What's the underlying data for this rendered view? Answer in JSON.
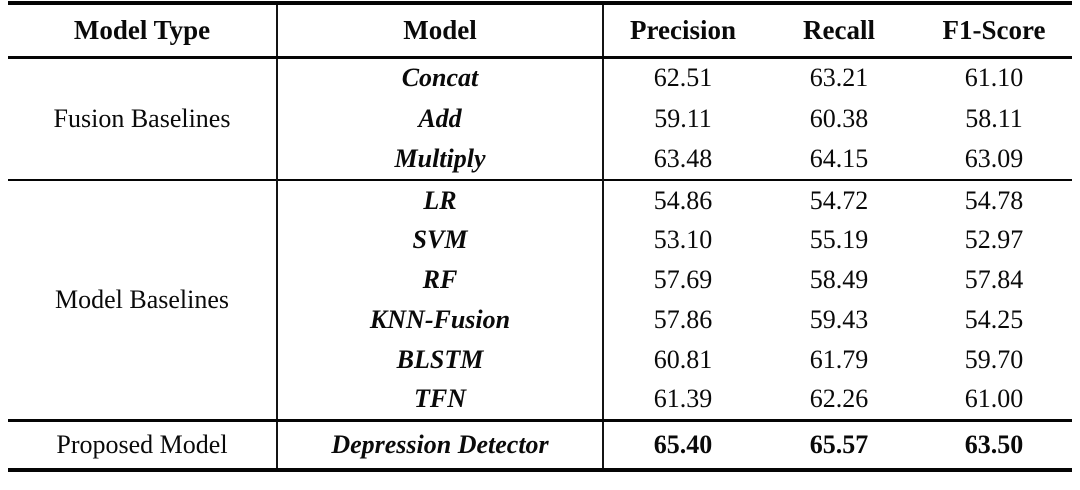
{
  "table": {
    "headers": [
      "Model Type",
      "Model",
      "Precision",
      "Recall",
      "F1-Score"
    ],
    "sections": [
      {
        "group": "Fusion Baselines",
        "rows": [
          {
            "model": "Concat",
            "precision": "62.51",
            "recall": "63.21",
            "f1": "61.10"
          },
          {
            "model": "Add",
            "precision": "59.11",
            "recall": "60.38",
            "f1": "58.11"
          },
          {
            "model": "Multiply",
            "precision": "63.48",
            "recall": "64.15",
            "f1": "63.09"
          }
        ]
      },
      {
        "group": "Model Baselines",
        "rows": [
          {
            "model": "LR",
            "precision": "54.86",
            "recall": "54.72",
            "f1": "54.78"
          },
          {
            "model": "SVM",
            "precision": "53.10",
            "recall": "55.19",
            "f1": "52.97"
          },
          {
            "model": "RF",
            "precision": "57.69",
            "recall": "58.49",
            "f1": "57.84"
          },
          {
            "model": "KNN-Fusion",
            "precision": "57.86",
            "recall": "59.43",
            "f1": "54.25"
          },
          {
            "model": "BLSTM",
            "precision": "60.81",
            "recall": "61.79",
            "f1": "59.70"
          },
          {
            "model": "TFN",
            "precision": "61.39",
            "recall": "62.26",
            "f1": "61.00"
          }
        ]
      },
      {
        "group": "Proposed Model",
        "rows": [
          {
            "model": "Depression Detector",
            "precision": "65.40",
            "recall": "65.57",
            "f1": "63.50"
          }
        ]
      }
    ],
    "colors": {
      "rule": "#050505",
      "text": "#0a0a0a",
      "background": "#ffffff"
    }
  }
}
